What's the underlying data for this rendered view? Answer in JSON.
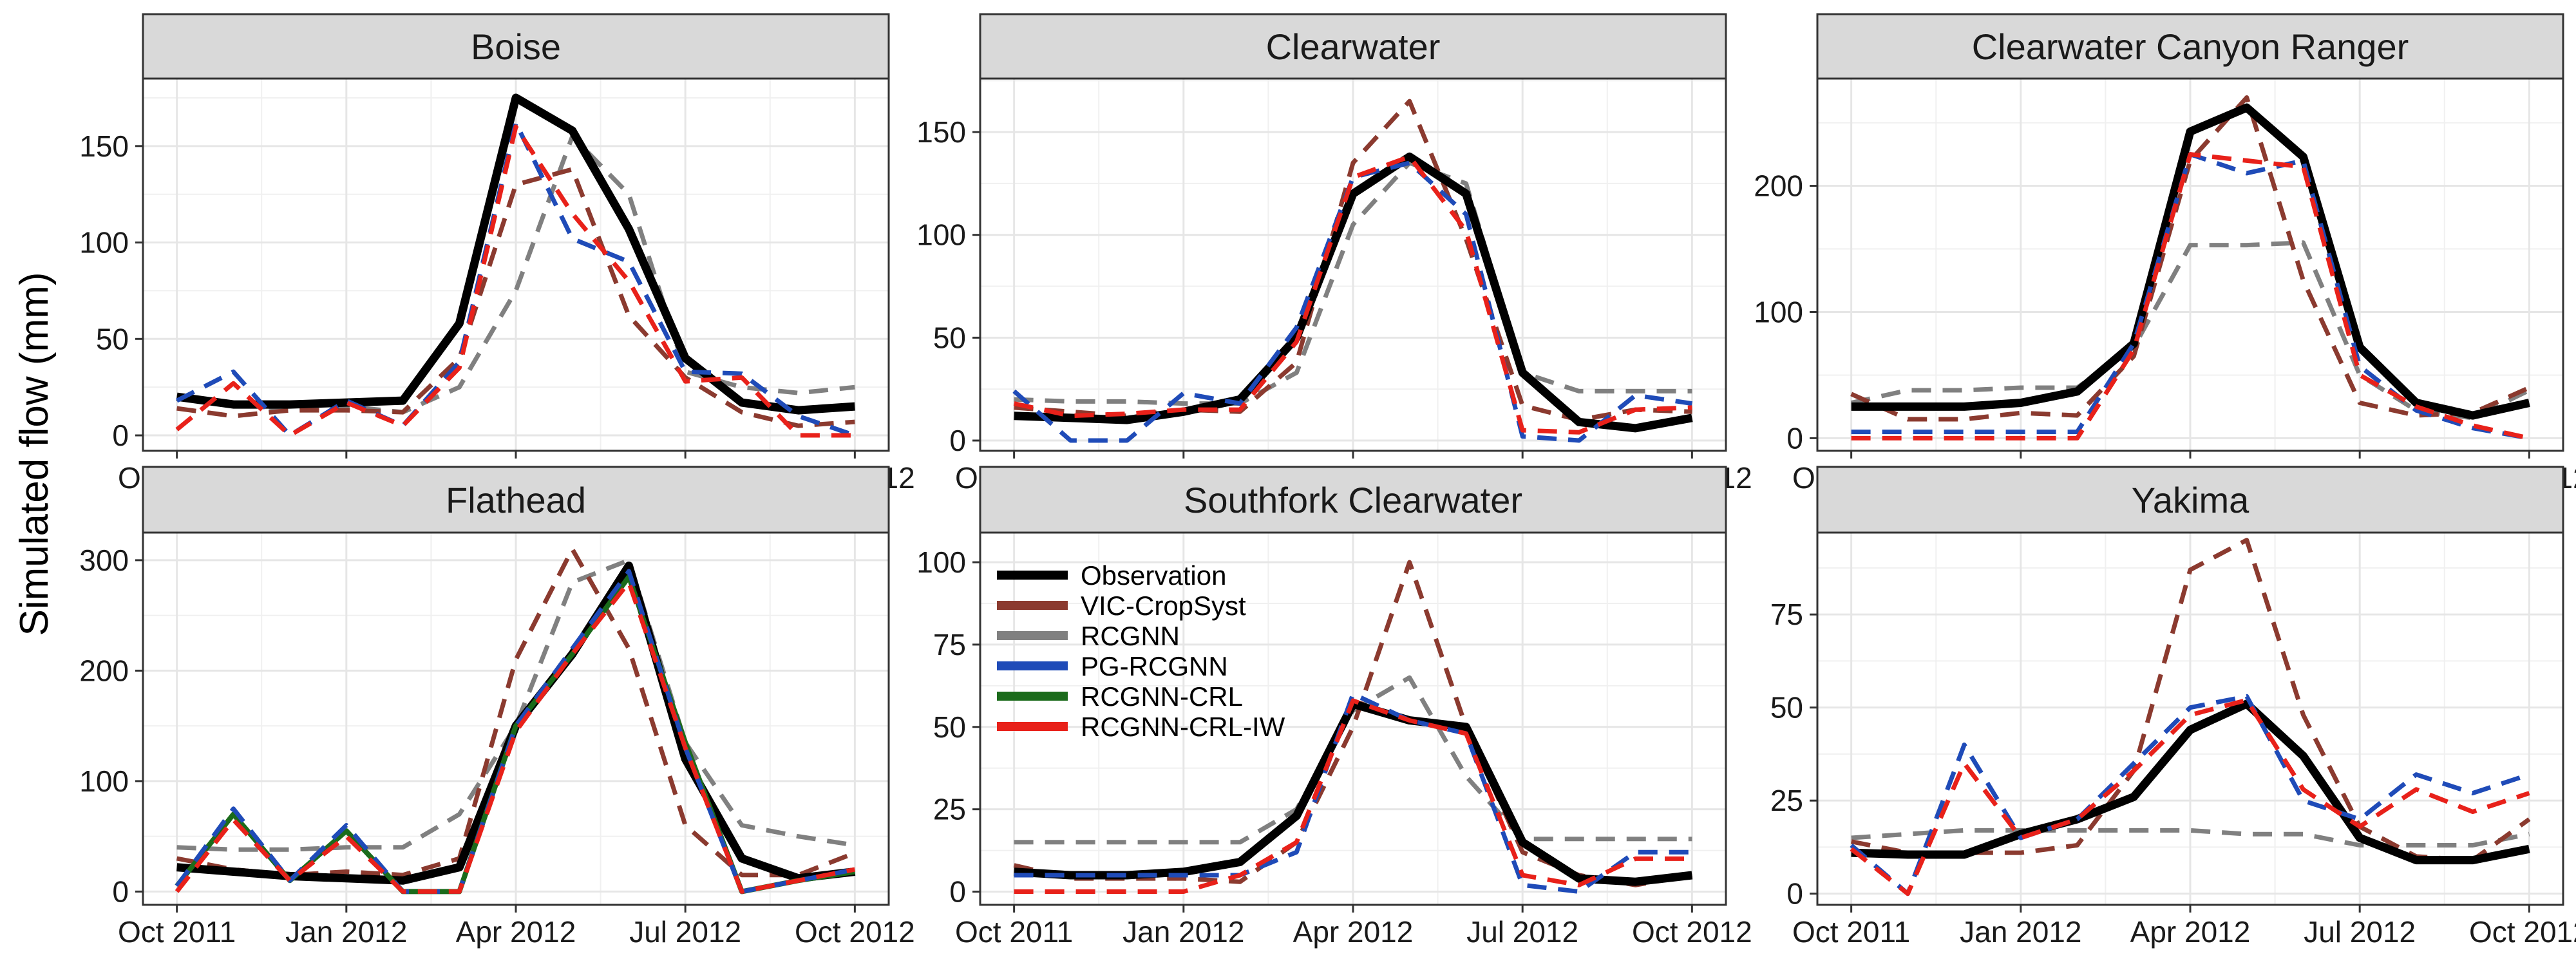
{
  "chart_data": {
    "type": "line",
    "ylabel": "Simulated flow (mm)",
    "xlabel": "",
    "x_ticks": [
      "Oct 2011",
      "Jan 2012",
      "Apr 2012",
      "Jul 2012",
      "Oct 2012"
    ],
    "x_tick_months": [
      0,
      3,
      6,
      9,
      12
    ],
    "legend": {
      "placement": "inside Southfork Clearwater panel, top-left",
      "entries": [
        "Observation",
        "VIC-CropSyst",
        "RCGNN",
        "PG-RCGNN",
        "RCGNN-CRL",
        "RCGNN-CRL-IW"
      ]
    },
    "series_styles": {
      "Observation": {
        "color": "#000000",
        "dash": "solid"
      },
      "VIC-CropSyst": {
        "color": "#8B3A2F",
        "dash": "dashed"
      },
      "RCGNN": {
        "color": "#808080",
        "dash": "dashed"
      },
      "PG-RCGNN": {
        "color": "#1F4BB8",
        "dash": "dashed"
      },
      "RCGNN-CRL": {
        "color": "#1B6B1B",
        "dash": "solid"
      },
      "RCGNN-CRL-IW": {
        "color": "#E8211A",
        "dash": "dashed"
      }
    },
    "panels": [
      {
        "title": "Boise",
        "ylim": [
          -8,
          185
        ],
        "y_ticks": [
          0,
          50,
          100,
          150
        ],
        "series": [
          {
            "name": "Observation",
            "values": [
              20,
              16,
              16,
              17,
              18,
              58,
              175,
              158,
              107,
              40,
              17,
              13,
              15
            ]
          },
          {
            "name": "VIC-CropSyst",
            "values": [
              14,
              10,
              13,
              13,
              12,
              40,
              130,
              138,
              62,
              30,
              12,
              5,
              7
            ]
          },
          {
            "name": "RCGNN",
            "values": [
              20,
              17,
              13,
              15,
              12,
              25,
              75,
              155,
              125,
              33,
              25,
              22,
              25
            ]
          },
          {
            "name": "PG-RCGNN",
            "values": [
              18,
              33,
              0,
              18,
              5,
              38,
              162,
              102,
              90,
              33,
              32,
              10,
              0
            ]
          },
          {
            "name": "RCGNN-CRL-IW",
            "values": [
              3,
              27,
              0,
              17,
              5,
              35,
              160,
              115,
              80,
              28,
              30,
              0,
              0
            ]
          }
        ]
      },
      {
        "title": "Clearwater",
        "ylim": [
          -5,
          176
        ],
        "y_ticks": [
          0,
          50,
          100,
          150
        ],
        "series": [
          {
            "name": "Observation",
            "values": [
              12,
              11,
              10,
              14,
              20,
              50,
              120,
              138,
              120,
              33,
              9,
              6,
              11
            ]
          },
          {
            "name": "VIC-CropSyst",
            "values": [
              16,
              14,
              12,
              15,
              14,
              38,
              135,
              165,
              98,
              17,
              10,
              15,
              14
            ]
          },
          {
            "name": "RCGNN",
            "values": [
              20,
              19,
              19,
              18,
              18,
              33,
              105,
              135,
              125,
              33,
              24,
              24,
              24
            ]
          },
          {
            "name": "PG-RCGNN",
            "values": [
              24,
              0,
              0,
              23,
              18,
              55,
              128,
              135,
              110,
              2,
              0,
              22,
              18
            ]
          },
          {
            "name": "RCGNN-CRL-IW",
            "values": [
              18,
              12,
              13,
              15,
              15,
              48,
              128,
              138,
              102,
              5,
              4,
              15,
              16
            ]
          }
        ]
      },
      {
        "title": "Clearwater Canyon Ranger",
        "ylim": [
          -10,
          285
        ],
        "y_ticks": [
          0,
          100,
          200
        ],
        "series": [
          {
            "name": "Observation",
            "values": [
              25,
              25,
              25,
              28,
              37,
              75,
              243,
              262,
              223,
              72,
              28,
              18,
              28
            ]
          },
          {
            "name": "VIC-CropSyst",
            "values": [
              35,
              15,
              15,
              20,
              18,
              65,
              220,
              270,
              125,
              28,
              18,
              20,
              40
            ]
          },
          {
            "name": "RCGNN",
            "values": [
              28,
              38,
              38,
              40,
              40,
              72,
              153,
              153,
              155,
              50,
              22,
              16,
              38
            ]
          },
          {
            "name": "PG-RCGNN",
            "values": [
              5,
              5,
              5,
              5,
              5,
              75,
              225,
              210,
              220,
              57,
              22,
              8,
              0
            ]
          },
          {
            "name": "RCGNN-CRL-IW",
            "values": [
              0,
              0,
              0,
              0,
              0,
              70,
              225,
              220,
              215,
              50,
              25,
              10,
              0
            ]
          }
        ]
      },
      {
        "title": "Flathead",
        "ylim": [
          -12,
          325
        ],
        "y_ticks": [
          0,
          100,
          200,
          300
        ],
        "series": [
          {
            "name": "Observation",
            "values": [
              22,
              18,
              14,
              12,
              10,
              22,
              150,
              215,
              295,
              120,
              30,
              12,
              18
            ]
          },
          {
            "name": "VIC-CropSyst",
            "values": [
              30,
              20,
              15,
              18,
              15,
              30,
              210,
              310,
              220,
              60,
              15,
              15,
              35
            ]
          },
          {
            "name": "RCGNN",
            "values": [
              40,
              38,
              38,
              40,
              40,
              70,
              150,
              280,
              300,
              135,
              60,
              50,
              42
            ]
          },
          {
            "name": "PG-RCGNN",
            "values": [
              5,
              75,
              10,
              60,
              0,
              0,
              150,
              220,
              290,
              130,
              0,
              10,
              20
            ]
          },
          {
            "name": "RCGNN-CRL",
            "values": [
              5,
              70,
              10,
              55,
              0,
              0,
              150,
              215,
              285,
              135,
              0,
              10,
              18
            ]
          },
          {
            "name": "RCGNN-CRL-IW",
            "values": [
              0,
              65,
              10,
              50,
              0,
              0,
              145,
              215,
              280,
              130,
              0,
              10,
              20
            ]
          }
        ]
      },
      {
        "title": "Southfork Clearwater",
        "ylim": [
          -4,
          109
        ],
        "y_ticks": [
          0,
          25,
          50,
          75,
          100
        ],
        "series": [
          {
            "name": "Observation",
            "values": [
              6,
              5,
              5,
              6,
              9,
              23,
              57,
              52,
              50,
              15,
              4,
              3,
              5
            ]
          },
          {
            "name": "VIC-CropSyst",
            "values": [
              8,
              4,
              4,
              4,
              3,
              15,
              50,
              100,
              50,
              12,
              5,
              2,
              5
            ]
          },
          {
            "name": "RCGNN",
            "values": [
              15,
              15,
              15,
              15,
              15,
              25,
              55,
              65,
              35,
              16,
              16,
              16,
              16
            ]
          },
          {
            "name": "PG-RCGNN",
            "values": [
              5,
              5,
              5,
              5,
              5,
              12,
              60,
              52,
              48,
              2,
              0,
              12,
              12
            ]
          },
          {
            "name": "RCGNN-CRL-IW",
            "values": [
              0,
              0,
              0,
              0,
              5,
              15,
              58,
              52,
              48,
              5,
              2,
              10,
              10
            ]
          }
        ]
      },
      {
        "title": "Yakima",
        "ylim": [
          -3,
          97
        ],
        "y_ticks": [
          0,
          25,
          50,
          75
        ],
        "series": [
          {
            "name": "Observation",
            "values": [
              11,
              10.5,
              10.5,
              16,
              20,
              26,
              44,
              51,
              37,
              15,
              9,
              9,
              12
            ]
          },
          {
            "name": "VIC-CropSyst",
            "values": [
              14,
              11,
              11,
              11,
              13,
              33,
              87,
              95,
              48,
              18,
              10,
              9,
              20
            ]
          },
          {
            "name": "RCGNN",
            "values": [
              15,
              16,
              17,
              17,
              17,
              17,
              17,
              16,
              16,
              13,
              13,
              13,
              16
            ]
          },
          {
            "name": "PG-RCGNN",
            "values": [
              13,
              0,
              40,
              15,
              20,
              35,
              50,
              53,
              25,
              20,
              32,
              27,
              32
            ]
          },
          {
            "name": "RCGNN-CRL-IW",
            "values": [
              12,
              0,
              35,
              15,
              20,
              33,
              48,
              52,
              28,
              18,
              28,
              22,
              27
            ]
          }
        ]
      }
    ]
  }
}
